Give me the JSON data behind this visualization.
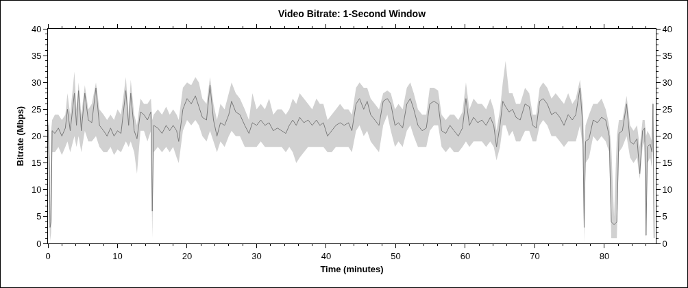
{
  "chart_data": {
    "type": "line",
    "title": "Video Bitrate: 1-Second Window",
    "xlabel": "Time (minutes)",
    "ylabel": "Bitrate (Mbps)",
    "xlim": [
      0,
      87.4
    ],
    "xticks": [
      0,
      {
        "value": 2,
        "label": null
      },
      {
        "value": 4,
        "label": null
      },
      {
        "value": 6,
        "label": null
      },
      {
        "value": 8,
        "label": null
      },
      10,
      {
        "value": 12,
        "label": null
      },
      {
        "value": 14,
        "label": null
      },
      {
        "value": 16,
        "label": null
      },
      {
        "value": 18,
        "label": null
      },
      20,
      {
        "value": 22,
        "label": null
      },
      {
        "value": 24,
        "label": null
      },
      {
        "value": 26,
        "label": null
      },
      {
        "value": 28,
        "label": null
      },
      30,
      {
        "value": 32,
        "label": null
      },
      {
        "value": 34,
        "label": null
      },
      {
        "value": 36,
        "label": null
      },
      {
        "value": 38,
        "label": null
      },
      40,
      {
        "value": 42,
        "label": null
      },
      {
        "value": 44,
        "label": null
      },
      {
        "value": 46,
        "label": null
      },
      {
        "value": 48,
        "label": null
      },
      50,
      {
        "value": 52,
        "label": null
      },
      {
        "value": 54,
        "label": null
      },
      {
        "value": 56,
        "label": null
      },
      {
        "value": 58,
        "label": null
      },
      60,
      {
        "value": 62,
        "label": null
      },
      {
        "value": 64,
        "label": null
      },
      {
        "value": 66,
        "label": null
      },
      {
        "value": 68,
        "label": null
      },
      70,
      {
        "value": 72,
        "label": null
      },
      {
        "value": 74,
        "label": null
      },
      {
        "value": 76,
        "label": null
      },
      {
        "value": 78,
        "label": null
      },
      80,
      {
        "value": 82,
        "label": null
      },
      {
        "value": 84,
        "label": null
      },
      {
        "value": 86,
        "label": null
      }
    ],
    "ylim": [
      0,
      40
    ],
    "yticks": [
      0,
      {
        "value": 1,
        "label": null
      },
      {
        "value": 2,
        "label": null
      },
      {
        "value": 3,
        "label": null
      },
      {
        "value": 4,
        "label": null
      },
      5,
      {
        "value": 6,
        "label": null
      },
      {
        "value": 7,
        "label": null
      },
      {
        "value": 8,
        "label": null
      },
      {
        "value": 9,
        "label": null
      },
      10,
      {
        "value": 11,
        "label": null
      },
      {
        "value": 12,
        "label": null
      },
      {
        "value": 13,
        "label": null
      },
      {
        "value": 14,
        "label": null
      },
      15,
      {
        "value": 16,
        "label": null
      },
      {
        "value": 17,
        "label": null
      },
      {
        "value": 18,
        "label": null
      },
      {
        "value": 19,
        "label": null
      },
      20,
      {
        "value": 21,
        "label": null
      },
      {
        "value": 22,
        "label": null
      },
      {
        "value": 23,
        "label": null
      },
      {
        "value": 24,
        "label": null
      },
      25,
      {
        "value": 26,
        "label": null
      },
      {
        "value": 27,
        "label": null
      },
      {
        "value": 28,
        "label": null
      },
      {
        "value": 29,
        "label": null
      },
      30,
      {
        "value": 31,
        "label": null
      },
      {
        "value": 32,
        "label": null
      },
      {
        "value": 33,
        "label": null
      },
      {
        "value": 34,
        "label": null
      },
      35,
      {
        "value": 36,
        "label": null
      },
      {
        "value": 37,
        "label": null
      },
      {
        "value": 38,
        "label": null
      },
      {
        "value": 39,
        "label": null
      },
      40
    ],
    "y2lim": [
      0,
      40
    ],
    "y2ticks": [
      0,
      {
        "value": 1,
        "label": null
      },
      {
        "value": 2,
        "label": null
      },
      {
        "value": 3,
        "label": null
      },
      {
        "value": 4,
        "label": null
      },
      5,
      {
        "value": 6,
        "label": null
      },
      {
        "value": 7,
        "label": null
      },
      {
        "value": 8,
        "label": null
      },
      {
        "value": 9,
        "label": null
      },
      10,
      {
        "value": 11,
        "label": null
      },
      {
        "value": 12,
        "label": null
      },
      {
        "value": 13,
        "label": null
      },
      {
        "value": 14,
        "label": null
      },
      15,
      {
        "value": 16,
        "label": null
      },
      {
        "value": 17,
        "label": null
      },
      {
        "value": 18,
        "label": null
      },
      {
        "value": 19,
        "label": null
      },
      20,
      {
        "value": 21,
        "label": null
      },
      {
        "value": 22,
        "label": null
      },
      {
        "value": 23,
        "label": null
      },
      {
        "value": 24,
        "label": null
      },
      25,
      {
        "value": 26,
        "label": null
      },
      {
        "value": 27,
        "label": null
      },
      {
        "value": 28,
        "label": null
      },
      {
        "value": 29,
        "label": null
      },
      30,
      {
        "value": 31,
        "label": null
      },
      {
        "value": 32,
        "label": null
      },
      {
        "value": 33,
        "label": null
      },
      {
        "value": 34,
        "label": null
      },
      35,
      {
        "value": 36,
        "label": null
      },
      {
        "value": 37,
        "label": null
      },
      {
        "value": 38,
        "label": null
      },
      {
        "value": 39,
        "label": null
      },
      40
    ],
    "series": [
      {
        "color": "#7a7a7a",
        "x": [
          0,
          0.2,
          0.3,
          0.45,
          0.6,
          1,
          1.5,
          2,
          2.5,
          2.8,
          3.2,
          3.8,
          4.1,
          4.4,
          4.8,
          5.3,
          5.8,
          6.3,
          6.9,
          7.4,
          8,
          8.5,
          9,
          9.5,
          10,
          10.5,
          11.2,
          11.6,
          11.9,
          12.4,
          12.8,
          13.3,
          13.8,
          14.3,
          14.8,
          15,
          15.2,
          15.8,
          16.4,
          17,
          17.5,
          18,
          18.5,
          18.8,
          19.4,
          20,
          20.6,
          21.2,
          21.7,
          22.2,
          22.8,
          23.3,
          23.8,
          24.3,
          24.8,
          25.4,
          26,
          26.4,
          27,
          27.6,
          28.3,
          28.9,
          29.4,
          30,
          30.6,
          31.2,
          31.8,
          32.4,
          33,
          33.6,
          34.2,
          34.7,
          35.2,
          35.7,
          36.2,
          36.8,
          37.4,
          38,
          38.6,
          39.1,
          39.6,
          40.2,
          40.8,
          41.4,
          42,
          42.6,
          43.2,
          43.7,
          44.3,
          44.8,
          45.4,
          45.9,
          46.4,
          47,
          47.6,
          48.2,
          48.8,
          49.3,
          49.9,
          50.4,
          51,
          51.6,
          52.1,
          52.6,
          53.2,
          53.8,
          54.4,
          54.9,
          55.5,
          56.1,
          56.6,
          57.2,
          57.8,
          58.4,
          59,
          59.6,
          60.1,
          60.6,
          61.2,
          61.8,
          62.4,
          63,
          63.6,
          64.1,
          64.5,
          65,
          65.4,
          65.8,
          66.3,
          66.8,
          67.3,
          67.9,
          68.6,
          69.2,
          69.7,
          70.2,
          70.7,
          71.2,
          71.8,
          72.4,
          73,
          73.6,
          74.2,
          74.8,
          75.4,
          75.9,
          76.5,
          76.9,
          77.1,
          77.3,
          77.8,
          78.4,
          79,
          79.6,
          80.2,
          80.7,
          81,
          81.4,
          81.8,
          82.1,
          82.6,
          83.2,
          83.7,
          84.2,
          84.7,
          85.1,
          85.5,
          85.8,
          86,
          86.2,
          86.6,
          86.85,
          87,
          87.15
        ],
        "values": [
          22,
          15,
          3,
          4,
          21,
          20.5,
          21.5,
          20,
          21.5,
          25,
          21,
          28,
          22,
          28.5,
          21,
          28,
          23,
          22.5,
          29,
          22,
          21,
          20,
          21.5,
          20,
          21,
          20.5,
          28.5,
          22,
          28,
          21,
          19.5,
          24.5,
          24,
          23,
          24.5,
          6,
          22,
          21.5,
          20.5,
          22,
          21,
          22,
          21,
          19,
          25,
          27,
          26,
          27.5,
          25.5,
          23.5,
          23,
          29.5,
          23,
          20,
          22.5,
          22,
          24,
          26.5,
          24.5,
          24,
          22,
          20.5,
          22.5,
          22,
          23,
          22,
          22.5,
          21,
          21.5,
          21,
          20.5,
          22,
          23,
          22,
          23.5,
          22.5,
          23,
          22,
          23,
          22,
          22.5,
          20,
          21,
          22,
          22.5,
          22,
          22.5,
          21,
          26,
          27,
          25,
          26.5,
          24,
          23,
          22,
          26.5,
          27,
          26,
          22,
          22.5,
          21.5,
          26,
          27,
          25,
          22,
          21,
          21.5,
          26,
          26.5,
          26,
          21,
          20.5,
          22,
          21,
          20,
          21.5,
          27,
          22,
          23.5,
          22.5,
          23,
          22,
          23.5,
          22,
          18,
          22,
          26.5,
          25.5,
          24.5,
          25,
          23.5,
          23,
          26,
          25.5,
          22,
          21.5,
          26.5,
          27,
          26,
          24,
          24.5,
          23.5,
          22,
          24,
          23,
          24,
          29,
          22,
          3,
          19,
          19.5,
          23,
          22.5,
          23.5,
          23,
          20,
          4,
          3.5,
          4,
          20.5,
          21,
          26,
          19,
          18.5,
          19.5,
          13,
          21,
          21.5,
          1.5,
          18,
          18.5,
          17,
          26,
          1
        ],
        "lower": [
          17,
          4,
          0.5,
          2,
          17,
          17,
          18,
          16.5,
          18,
          19,
          17,
          20,
          18,
          20,
          17,
          21,
          19,
          19,
          20,
          18,
          17,
          17,
          18,
          16.5,
          17.5,
          17,
          19,
          18,
          19,
          17,
          13,
          21,
          21,
          19,
          21,
          1,
          17,
          18,
          17,
          18,
          17,
          18,
          16,
          15,
          21,
          23,
          22,
          23,
          22,
          20,
          19,
          21,
          19,
          17,
          19,
          18,
          20,
          21,
          20,
          20,
          18,
          18,
          18,
          18,
          19,
          18,
          18,
          18,
          18,
          18,
          17,
          18,
          17,
          15,
          16,
          17,
          18,
          18,
          18,
          18,
          18,
          17,
          17,
          18,
          18,
          18,
          18,
          17,
          21,
          22,
          20,
          21,
          19,
          18,
          17,
          22,
          24,
          21,
          18,
          19,
          18,
          21,
          22,
          20,
          18,
          18,
          18,
          21,
          22,
          22,
          18,
          17,
          18,
          17,
          17,
          18,
          19,
          18,
          19,
          19,
          19,
          18,
          19,
          18,
          15.5,
          18,
          22,
          22,
          20,
          21,
          19,
          19,
          21,
          21,
          19,
          19,
          22,
          23,
          22,
          20,
          20,
          19,
          18,
          19,
          19,
          19,
          22,
          18,
          0.2,
          15,
          16,
          20,
          19,
          20,
          19,
          17,
          1,
          1,
          1,
          17,
          18,
          20,
          16,
          15,
          16,
          12,
          18,
          19,
          0.6,
          15,
          16,
          14,
          18,
          0.5
        ],
        "upper": [
          23,
          22,
          5,
          21,
          23,
          24,
          24,
          23,
          24,
          28,
          24,
          32,
          25,
          30,
          24,
          29.5,
          25,
          26,
          30,
          25,
          24,
          23,
          24,
          23,
          25,
          24,
          31,
          24,
          30.5,
          24,
          22,
          27,
          26,
          26,
          27,
          23,
          24,
          25,
          24,
          25.5,
          24,
          25,
          24,
          23,
          29,
          30,
          29.5,
          31,
          30,
          27,
          26,
          31,
          26,
          23,
          26,
          25,
          28,
          30,
          28,
          27,
          25,
          23,
          28,
          25,
          26,
          25,
          27,
          24,
          25,
          25,
          24,
          25,
          27,
          26,
          28,
          27,
          26,
          25,
          27,
          26,
          26,
          23,
          24,
          25,
          26,
          25,
          25,
          24,
          29,
          30,
          29,
          29,
          27,
          26,
          25,
          28,
          28.5,
          28,
          25,
          26,
          25,
          29,
          30,
          28,
          25,
          24,
          24,
          29,
          29,
          28.5,
          24,
          23,
          24,
          24,
          23,
          24.5,
          30,
          25,
          27,
          26,
          26,
          25,
          27,
          25,
          21,
          25,
          30,
          34,
          28,
          28,
          26,
          26,
          29,
          28,
          24,
          24,
          29,
          30,
          29,
          27,
          28,
          27,
          26,
          28,
          26,
          27,
          30.5,
          26,
          18,
          22,
          24,
          26,
          26,
          27,
          25,
          22,
          18,
          5,
          20,
          23,
          23,
          27.5,
          22,
          21,
          22,
          18,
          23,
          23,
          20,
          21,
          20,
          19,
          27,
          3
        ]
      }
    ]
  }
}
